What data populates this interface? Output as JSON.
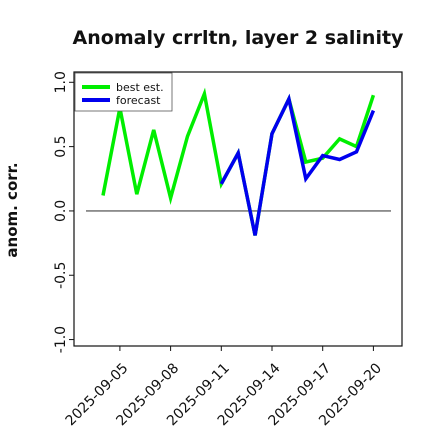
{
  "chart_data": {
    "type": "line",
    "title": "Anomaly crrltn, layer 2 salinity",
    "xlabel": "",
    "ylabel": "anom. corr.",
    "x": [
      "2025-09-04",
      "2025-09-05",
      "2025-09-06",
      "2025-09-07",
      "2025-09-08",
      "2025-09-09",
      "2025-09-10",
      "2025-09-11",
      "2025-09-12",
      "2025-09-13",
      "2025-09-14",
      "2025-09-15",
      "2025-09-16",
      "2025-09-17",
      "2025-09-18",
      "2025-09-19",
      "2025-09-20"
    ],
    "xticks": [
      "2025-09-05",
      "2025-09-08",
      "2025-09-11",
      "2025-09-14",
      "2025-09-17",
      "2025-09-20"
    ],
    "highlight_tick": "2025-09-11",
    "ylim": [
      -1.05,
      1.08
    ],
    "yticks": [
      "-1.0",
      "-0.5",
      "0.0",
      "0.5",
      "1.0"
    ],
    "reference_line": 0.0,
    "grid": false,
    "legend_position": "top-left",
    "series": [
      {
        "name": "best est.",
        "color": "#00ee00",
        "values": [
          0.12,
          0.8,
          0.13,
          0.63,
          0.1,
          0.58,
          0.91,
          0.21,
          0.45,
          -0.19,
          0.6,
          0.87,
          0.38,
          0.41,
          0.56,
          0.5,
          0.9
        ]
      },
      {
        "name": "forecast",
        "color": "#0000ee",
        "values": [
          null,
          null,
          null,
          null,
          null,
          null,
          null,
          0.21,
          0.45,
          -0.19,
          0.6,
          0.87,
          0.25,
          0.43,
          0.4,
          0.46,
          0.78
        ]
      }
    ]
  },
  "colors": {
    "highlight_tick": "#2e8b2e",
    "axis": "#111111",
    "reference_line": "#666666"
  }
}
